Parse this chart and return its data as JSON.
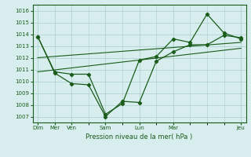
{
  "bg_color": "#d8eeee",
  "grid_color": "#aacccc",
  "line_color": "#1a5c1a",
  "xlabel": "Pression niveau de la mer( hPa )",
  "ylim": [
    1006.5,
    1016.5
  ],
  "yticks": [
    1007,
    1008,
    1009,
    1010,
    1011,
    1012,
    1013,
    1014,
    1015,
    1016
  ],
  "xlim": [
    -0.3,
    12.3
  ],
  "major_x_positions": [
    0,
    1,
    2,
    4,
    6,
    8,
    12
  ],
  "major_x_labels": [
    "Dim",
    "Mer",
    "Ven",
    "Sam",
    "Lun",
    "Mar",
    "Jeu"
  ],
  "series1_x": [
    0,
    1,
    2,
    3,
    4,
    5,
    6,
    7,
    8,
    9,
    10,
    11,
    12
  ],
  "series1_y": [
    1013.8,
    1010.7,
    1009.8,
    1009.7,
    1007.0,
    1008.3,
    1008.2,
    1011.7,
    1012.5,
    1013.1,
    1013.1,
    1013.9,
    1013.7
  ],
  "series2_x": [
    0,
    1,
    2,
    3,
    4,
    5,
    6,
    7,
    8,
    9,
    10,
    11,
    12
  ],
  "series2_y": [
    1013.8,
    1010.8,
    1010.6,
    1010.6,
    1007.2,
    1008.1,
    1011.8,
    1012.1,
    1013.6,
    1013.3,
    1015.7,
    1014.1,
    1013.6
  ],
  "trend1_x": [
    0,
    12
  ],
  "trend1_y": [
    1010.8,
    1012.8
  ],
  "trend2_x": [
    0,
    12
  ],
  "trend2_y": [
    1012.0,
    1013.3
  ]
}
